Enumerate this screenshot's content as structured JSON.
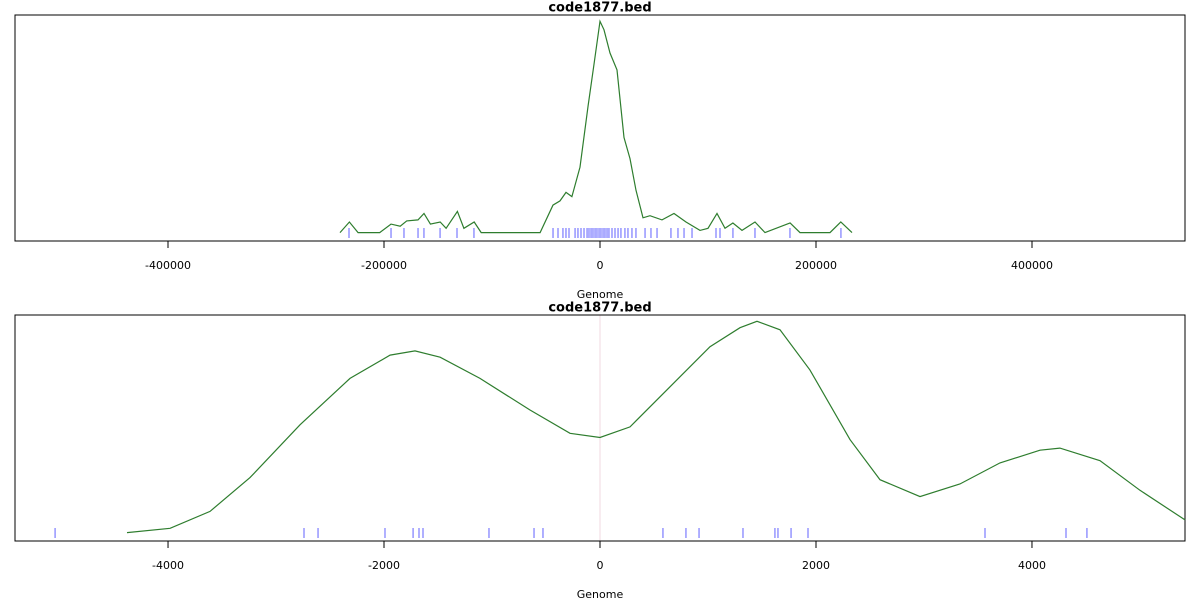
{
  "chart_data": [
    {
      "type": "line",
      "title": "code1877.bed",
      "x_label": "Genome",
      "color": "#2e7d2e",
      "x": [
        -240700,
        -232000,
        -224000,
        -204000,
        -193500,
        -185000,
        -179000,
        -168500,
        -163000,
        -157000,
        -148000,
        -142500,
        -132000,
        -126000,
        -116500,
        -110000,
        -55500,
        -43500,
        -37000,
        -31500,
        -26000,
        -18500,
        -11000,
        -5500,
        0,
        3700,
        9300,
        15700,
        22200,
        27800,
        33300,
        39800,
        46300,
        57400,
        68500,
        79600,
        92600,
        100000,
        108300,
        115700,
        123100,
        131500,
        143500,
        152800,
        176000,
        185200,
        213000,
        223000,
        233300
      ],
      "values": [
        0,
        0.05,
        0,
        0,
        0.04,
        0.03,
        0.055,
        0.06,
        0.09,
        0.04,
        0.05,
        0.02,
        0.1,
        0.02,
        0.05,
        0,
        0,
        0.13,
        0.15,
        0.19,
        0.17,
        0.31,
        0.6,
        0.8,
        1.0,
        0.96,
        0.85,
        0.77,
        0.45,
        0.35,
        0.2,
        0.07,
        0.08,
        0.06,
        0.09,
        0.05,
        0.01,
        0.02,
        0.09,
        0.02,
        0.045,
        0.01,
        0.05,
        0,
        0.045,
        0,
        0,
        0.05,
        0
      ],
      "rug_color": "#6060ff",
      "rug_x": [
        -232400,
        -193500,
        -181500,
        -168500,
        -163000,
        -148100,
        -132400,
        -116700,
        -43500,
        -38900,
        -34300,
        -31500,
        -28700,
        -23100,
        -20400,
        -17600,
        -14800,
        -12000,
        -10200,
        -8300,
        -6500,
        -4600,
        -2800,
        -900,
        900,
        2800,
        4600,
        6500,
        8300,
        11100,
        13900,
        16700,
        19400,
        23100,
        25900,
        29600,
        33300,
        41700,
        47200,
        52800,
        65700,
        72200,
        77800,
        85200,
        107400,
        111100,
        123100,
        143500,
        175900,
        223100
      ],
      "xlim": [
        -541667,
        541667
      ],
      "xticks": [
        -400000,
        -200000,
        0,
        200000,
        400000
      ],
      "ylim": [
        -0.04,
        1.03
      ]
    },
    {
      "type": "line",
      "title": "code1877.bed",
      "x_label": "Genome",
      "color": "#2e7d2e",
      "x": [
        -4380,
        -3981,
        -3611,
        -3241,
        -2778,
        -2315,
        -1944,
        -1713,
        -1481,
        -1111,
        -648,
        -278,
        0,
        278,
        648,
        1019,
        1296,
        1454,
        1667,
        1944,
        2315,
        2593,
        2963,
        3333,
        3704,
        4074,
        4259,
        4630,
        5000,
        5417
      ],
      "values": [
        0,
        0.02,
        0.1,
        0.26,
        0.51,
        0.73,
        0.84,
        0.86,
        0.83,
        0.73,
        0.58,
        0.47,
        0.45,
        0.5,
        0.69,
        0.88,
        0.97,
        1.0,
        0.96,
        0.77,
        0.44,
        0.25,
        0.17,
        0.23,
        0.33,
        0.39,
        0.4,
        0.34,
        0.2,
        0.06
      ],
      "rug_color": "#6060ff",
      "rug_x": [
        -5046,
        -2741,
        -2611,
        -1991,
        -1731,
        -1676,
        -1639,
        -1028,
        -611,
        -528,
        583,
        796,
        917,
        1324,
        1620,
        1648,
        1769,
        1926,
        3565,
        4315,
        4509
      ],
      "vline": 0,
      "vline_color": "#f0d8e0",
      "xlim": [
        -5417,
        5417
      ],
      "xticks": [
        -4000,
        -2000,
        0,
        2000,
        4000
      ],
      "ylim": [
        -0.04,
        1.03
      ]
    }
  ]
}
